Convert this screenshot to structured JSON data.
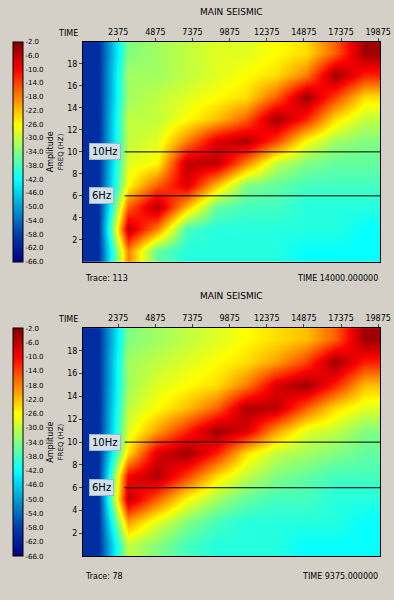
{
  "chart_data": [
    {
      "type": "heatmap",
      "title": "MAIN SEISMIC",
      "x_label": "TIME",
      "y_label": "FREQ (HZ)",
      "colorbar_title": "Amplitude",
      "x": [
        1000,
        3000,
        5000,
        7000,
        9000,
        11000,
        13000,
        15000,
        17000,
        19000
      ],
      "y": [
        1,
        3,
        5,
        7,
        9,
        11,
        13,
        15,
        17,
        19
      ],
      "z": [
        [
          -60,
          -18,
          -36,
          -40,
          -40,
          -40,
          -40,
          -42,
          -42,
          -42
        ],
        [
          -60,
          -6,
          -18,
          -38,
          -40,
          -40,
          -40,
          -40,
          -40,
          -42
        ],
        [
          -60,
          -16,
          -5,
          -22,
          -36,
          -38,
          -38,
          -40,
          -40,
          -40
        ],
        [
          -60,
          -26,
          -16,
          -8,
          -22,
          -34,
          -36,
          -38,
          -38,
          -38
        ],
        [
          -60,
          -28,
          -26,
          -6,
          -6,
          -18,
          -30,
          -34,
          -36,
          -36
        ],
        [
          -60,
          -30,
          -28,
          -18,
          -8,
          -5,
          -14,
          -26,
          -32,
          -34
        ],
        [
          -60,
          -30,
          -30,
          -26,
          -22,
          -16,
          -4,
          -12,
          -24,
          -30
        ],
        [
          -60,
          -32,
          -30,
          -28,
          -26,
          -24,
          -16,
          -4,
          -14,
          -24
        ],
        [
          -60,
          -32,
          -32,
          -30,
          -28,
          -26,
          -24,
          -18,
          -4,
          -12
        ],
        [
          -60,
          -34,
          -32,
          -30,
          -28,
          -28,
          -26,
          -24,
          -16,
          -4
        ]
      ],
      "xlim": [
        0,
        20000
      ],
      "xticks": [
        2375,
        4875,
        7375,
        9875,
        12375,
        14875,
        17375,
        19875
      ],
      "ylim": [
        0,
        20
      ],
      "yticks": [
        2,
        4,
        6,
        8,
        10,
        12,
        14,
        16,
        18
      ],
      "colorbar_range": [
        -66,
        -2
      ],
      "colorbar_ticks": [
        {
          "value": -2,
          "label": "-2.0"
        },
        {
          "value": -6,
          "label": "-6.0"
        },
        {
          "value": -10,
          "label": "-10.0"
        },
        {
          "value": -14,
          "label": "-14.0"
        },
        {
          "value": -18,
          "label": "-18.0"
        },
        {
          "value": -22,
          "label": "-22.0"
        },
        {
          "value": -26,
          "label": "-26.0"
        },
        {
          "value": -30,
          "label": "-30.0"
        },
        {
          "value": -34,
          "label": "-34.0"
        },
        {
          "value": -38,
          "label": "-38.0"
        },
        {
          "value": -42,
          "label": "-42.0"
        },
        {
          "value": -46,
          "label": "-46.0"
        },
        {
          "value": -50,
          "label": "-50.0"
        },
        {
          "value": -54,
          "label": "-54.0"
        },
        {
          "value": -58,
          "label": "-58.0"
        },
        {
          "value": -62,
          "label": "-62.0"
        },
        {
          "value": -66,
          "label": "-66.0"
        }
      ],
      "annotations": [
        {
          "text": "10Hz",
          "y": 10
        },
        {
          "text": "6Hz",
          "y": 6
        }
      ],
      "status": [
        "Trace: 113",
        "TIME 14000.000000"
      ]
    },
    {
      "type": "heatmap",
      "title": "MAIN SEISMIC",
      "x_label": "TIME",
      "y_label": "FREQ (HZ)",
      "colorbar_title": "Amplitude",
      "x": [
        1000,
        3000,
        5000,
        7000,
        9000,
        11000,
        13000,
        15000,
        17000,
        19000
      ],
      "y": [
        1,
        3,
        5,
        7,
        9,
        11,
        13,
        15,
        17,
        19
      ],
      "z": [
        [
          -60,
          -30,
          -34,
          -38,
          -40,
          -40,
          -40,
          -42,
          -42,
          -42
        ],
        [
          -60,
          -20,
          -28,
          -34,
          -38,
          -40,
          -40,
          -40,
          -40,
          -42
        ],
        [
          -60,
          -6,
          -16,
          -26,
          -32,
          -36,
          -38,
          -38,
          -40,
          -40
        ],
        [
          -60,
          -10,
          -5,
          -14,
          -24,
          -30,
          -34,
          -36,
          -38,
          -38
        ],
        [
          -60,
          -24,
          -8,
          -4,
          -12,
          -24,
          -30,
          -32,
          -34,
          -36
        ],
        [
          -60,
          -28,
          -20,
          -12,
          -4,
          -8,
          -20,
          -28,
          -30,
          -34
        ],
        [
          -60,
          -30,
          -26,
          -22,
          -16,
          -5,
          -6,
          -16,
          -24,
          -28
        ],
        [
          -60,
          -32,
          -28,
          -26,
          -24,
          -18,
          -8,
          -4,
          -12,
          -22
        ],
        [
          -60,
          -32,
          -30,
          -28,
          -26,
          -24,
          -20,
          -14,
          -4,
          -12
        ],
        [
          -60,
          -34,
          -32,
          -30,
          -28,
          -26,
          -24,
          -22,
          -16,
          -4
        ]
      ],
      "xlim": [
        0,
        20000
      ],
      "xticks": [
        2375,
        4875,
        7375,
        9875,
        12375,
        14875,
        17375,
        19875
      ],
      "ylim": [
        0,
        20
      ],
      "yticks": [
        2,
        4,
        6,
        8,
        10,
        12,
        14,
        16,
        18
      ],
      "colorbar_range": [
        -66,
        -2
      ],
      "colorbar_ticks": [
        {
          "value": -2,
          "label": "-2.0"
        },
        {
          "value": -6,
          "label": "-6.0"
        },
        {
          "value": -10,
          "label": "-10.0"
        },
        {
          "value": -14,
          "label": "-14.0"
        },
        {
          "value": -18,
          "label": "-18.0"
        },
        {
          "value": -22,
          "label": "-22.0"
        },
        {
          "value": -26,
          "label": "-26.0"
        },
        {
          "value": -30,
          "label": "-30.0"
        },
        {
          "value": -34,
          "label": "-34.0"
        },
        {
          "value": -38,
          "label": "-38.0"
        },
        {
          "value": -42,
          "label": "-42.0"
        },
        {
          "value": -46,
          "label": "-46.0"
        },
        {
          "value": -50,
          "label": "-50.0"
        },
        {
          "value": -54,
          "label": "-54.0"
        },
        {
          "value": -58,
          "label": "-58.0"
        },
        {
          "value": -62,
          "label": "-62.0"
        },
        {
          "value": -66,
          "label": "-66.0"
        }
      ],
      "annotations": [
        {
          "text": "10Hz",
          "y": 10
        },
        {
          "text": "6Hz",
          "y": 6
        }
      ],
      "status": [
        "Trace: 78",
        "TIME 9375.000000"
      ]
    }
  ]
}
